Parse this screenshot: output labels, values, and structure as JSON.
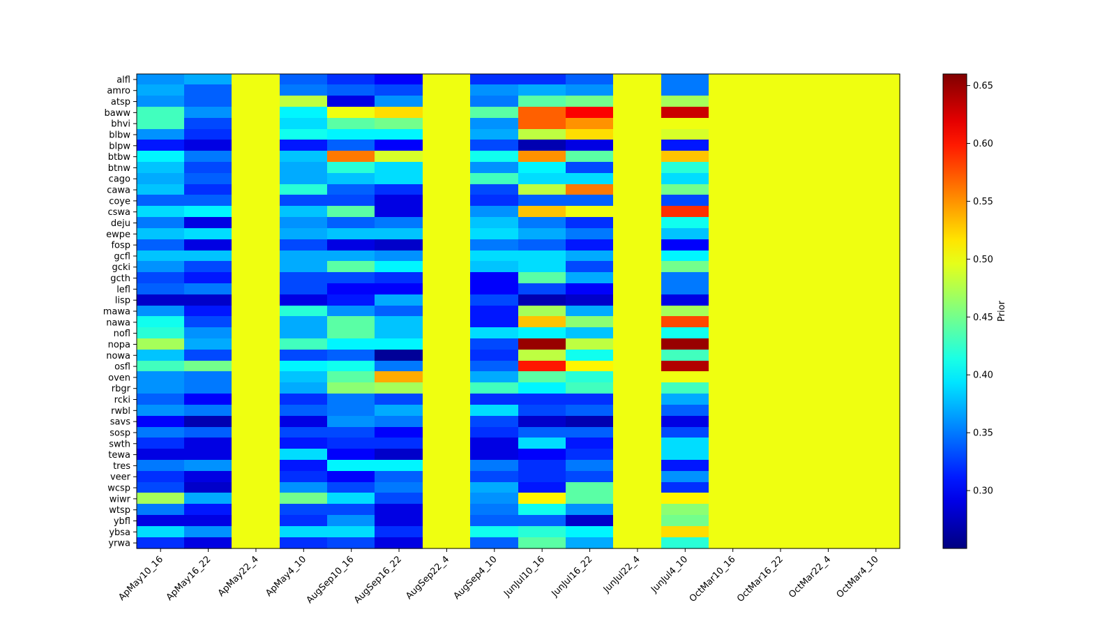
{
  "chart_data": {
    "type": "heatmap",
    "title": "",
    "xlabel": "",
    "ylabel": "",
    "colormap": "jet",
    "colorbar": {
      "label": "Prior",
      "range": [
        0.25,
        0.66
      ],
      "ticks": [
        "0.30",
        "0.35",
        "0.40",
        "0.45",
        "0.50",
        "0.55",
        "0.60",
        "0.65"
      ]
    },
    "x_labels": [
      "ApMay10_16",
      "ApMay16_22",
      "ApMay22_4",
      "ApMay4_10",
      "AugSep10_16",
      "AugSep16_22",
      "AugSep22_4",
      "AugSep4_10",
      "JunJul10_16",
      "JunJul16_22",
      "JunJul22_4",
      "JunJul4_10",
      "OctMar10_16",
      "OctMar16_22",
      "OctMar22_4",
      "OctMar4_10"
    ],
    "y_labels": [
      "alfl",
      "amro",
      "atsp",
      "baww",
      "bhvi",
      "blbw",
      "blpw",
      "btbw",
      "btnw",
      "cago",
      "cawa",
      "coye",
      "cswa",
      "deju",
      "ewpe",
      "fosp",
      "gcfl",
      "gcki",
      "gcth",
      "lefl",
      "lisp",
      "mawa",
      "nawa",
      "nofl",
      "nopa",
      "nowa",
      "osfl",
      "oven",
      "rbgr",
      "rcki",
      "rwbl",
      "savs",
      "sosp",
      "swth",
      "tewa",
      "tres",
      "veer",
      "wcsp",
      "wiwr",
      "wtsp",
      "ybfl",
      "ybsa",
      "yrwa"
    ],
    "values": [
      [
        0.36,
        0.37,
        0.5,
        0.34,
        0.32,
        0.3,
        0.5,
        0.32,
        0.32,
        0.34,
        0.5,
        0.35,
        0.5,
        0.5,
        0.5,
        0.5
      ],
      [
        0.37,
        0.34,
        0.5,
        0.35,
        0.34,
        0.33,
        0.5,
        0.36,
        0.37,
        0.36,
        0.5,
        0.35,
        0.5,
        0.5,
        0.5,
        0.5
      ],
      [
        0.36,
        0.34,
        0.5,
        0.48,
        0.29,
        0.36,
        0.5,
        0.35,
        0.44,
        0.45,
        0.5,
        0.47,
        0.5,
        0.5,
        0.5,
        0.5
      ],
      [
        0.43,
        0.36,
        0.5,
        0.4,
        0.5,
        0.52,
        0.5,
        0.44,
        0.57,
        0.61,
        0.5,
        0.63,
        0.5,
        0.5,
        0.5,
        0.5
      ],
      [
        0.43,
        0.33,
        0.5,
        0.39,
        0.44,
        0.45,
        0.5,
        0.36,
        0.57,
        0.55,
        0.5,
        0.5,
        0.5,
        0.5,
        0.5,
        0.5
      ],
      [
        0.36,
        0.32,
        0.5,
        0.41,
        0.4,
        0.4,
        0.5,
        0.37,
        0.48,
        0.52,
        0.5,
        0.49,
        0.5,
        0.5,
        0.5,
        0.5
      ],
      [
        0.31,
        0.29,
        0.5,
        0.31,
        0.34,
        0.3,
        0.5,
        0.33,
        0.27,
        0.29,
        0.5,
        0.31,
        0.5,
        0.5,
        0.5,
        0.5
      ],
      [
        0.4,
        0.35,
        0.5,
        0.38,
        0.56,
        0.49,
        0.5,
        0.41,
        0.55,
        0.44,
        0.5,
        0.53,
        0.5,
        0.5,
        0.5,
        0.5
      ],
      [
        0.38,
        0.33,
        0.5,
        0.37,
        0.42,
        0.39,
        0.5,
        0.36,
        0.4,
        0.33,
        0.5,
        0.42,
        0.5,
        0.5,
        0.5,
        0.5
      ],
      [
        0.37,
        0.34,
        0.5,
        0.37,
        0.38,
        0.39,
        0.5,
        0.43,
        0.39,
        0.39,
        0.5,
        0.39,
        0.5,
        0.5,
        0.5,
        0.5
      ],
      [
        0.38,
        0.32,
        0.5,
        0.42,
        0.34,
        0.32,
        0.5,
        0.33,
        0.48,
        0.56,
        0.5,
        0.45,
        0.5,
        0.5,
        0.5,
        0.5
      ],
      [
        0.34,
        0.34,
        0.5,
        0.33,
        0.33,
        0.29,
        0.5,
        0.32,
        0.34,
        0.34,
        0.5,
        0.33,
        0.5,
        0.5,
        0.5,
        0.5
      ],
      [
        0.39,
        0.4,
        0.5,
        0.38,
        0.44,
        0.29,
        0.5,
        0.36,
        0.53,
        0.5,
        0.5,
        0.59,
        0.5,
        0.5,
        0.5,
        0.5
      ],
      [
        0.35,
        0.29,
        0.5,
        0.36,
        0.34,
        0.35,
        0.5,
        0.38,
        0.35,
        0.32,
        0.5,
        0.41,
        0.5,
        0.5,
        0.5,
        0.5
      ],
      [
        0.38,
        0.39,
        0.5,
        0.37,
        0.38,
        0.38,
        0.5,
        0.39,
        0.37,
        0.35,
        0.5,
        0.38,
        0.5,
        0.5,
        0.5,
        0.5
      ],
      [
        0.34,
        0.29,
        0.5,
        0.33,
        0.29,
        0.28,
        0.5,
        0.35,
        0.34,
        0.31,
        0.5,
        0.3,
        0.5,
        0.5,
        0.5,
        0.5
      ],
      [
        0.38,
        0.38,
        0.5,
        0.37,
        0.37,
        0.36,
        0.5,
        0.39,
        0.39,
        0.37,
        0.5,
        0.4,
        0.5,
        0.5,
        0.5,
        0.5
      ],
      [
        0.36,
        0.33,
        0.5,
        0.37,
        0.44,
        0.4,
        0.5,
        0.38,
        0.39,
        0.33,
        0.5,
        0.45,
        0.5,
        0.5,
        0.5,
        0.5
      ],
      [
        0.33,
        0.31,
        0.5,
        0.33,
        0.33,
        0.32,
        0.5,
        0.3,
        0.44,
        0.37,
        0.5,
        0.35,
        0.5,
        0.5,
        0.5,
        0.5
      ],
      [
        0.34,
        0.35,
        0.5,
        0.33,
        0.3,
        0.3,
        0.5,
        0.3,
        0.33,
        0.3,
        0.5,
        0.35,
        0.5,
        0.5,
        0.5,
        0.5
      ],
      [
        0.28,
        0.28,
        0.5,
        0.29,
        0.31,
        0.37,
        0.5,
        0.33,
        0.27,
        0.28,
        0.5,
        0.29,
        0.5,
        0.5,
        0.5,
        0.5
      ],
      [
        0.36,
        0.31,
        0.5,
        0.42,
        0.36,
        0.34,
        0.5,
        0.31,
        0.47,
        0.37,
        0.5,
        0.47,
        0.5,
        0.5,
        0.5,
        0.5
      ],
      [
        0.41,
        0.33,
        0.5,
        0.37,
        0.44,
        0.38,
        0.5,
        0.31,
        0.53,
        0.46,
        0.5,
        0.58,
        0.5,
        0.5,
        0.5,
        0.5
      ],
      [
        0.42,
        0.36,
        0.5,
        0.37,
        0.44,
        0.38,
        0.5,
        0.39,
        0.4,
        0.38,
        0.5,
        0.41,
        0.5,
        0.5,
        0.5,
        0.5
      ],
      [
        0.47,
        0.37,
        0.5,
        0.43,
        0.4,
        0.4,
        0.5,
        0.33,
        0.65,
        0.48,
        0.5,
        0.65,
        0.5,
        0.5,
        0.5,
        0.5
      ],
      [
        0.38,
        0.33,
        0.5,
        0.33,
        0.34,
        0.26,
        0.5,
        0.32,
        0.48,
        0.41,
        0.5,
        0.43,
        0.5,
        0.5,
        0.5,
        0.5
      ],
      [
        0.43,
        0.45,
        0.5,
        0.4,
        0.41,
        0.35,
        0.5,
        0.34,
        0.6,
        0.51,
        0.5,
        0.64,
        0.5,
        0.5,
        0.5,
        0.5
      ],
      [
        0.36,
        0.35,
        0.5,
        0.38,
        0.44,
        0.54,
        0.5,
        0.37,
        0.44,
        0.42,
        0.5,
        0.5,
        0.5,
        0.5,
        0.5,
        0.5
      ],
      [
        0.36,
        0.35,
        0.5,
        0.37,
        0.46,
        0.47,
        0.5,
        0.43,
        0.4,
        0.43,
        0.5,
        0.43,
        0.5,
        0.5,
        0.5,
        0.5
      ],
      [
        0.34,
        0.3,
        0.5,
        0.32,
        0.35,
        0.33,
        0.5,
        0.32,
        0.32,
        0.32,
        0.5,
        0.37,
        0.5,
        0.5,
        0.5,
        0.5
      ],
      [
        0.36,
        0.35,
        0.5,
        0.34,
        0.35,
        0.37,
        0.5,
        0.39,
        0.33,
        0.34,
        0.5,
        0.34,
        0.5,
        0.5,
        0.5,
        0.5
      ],
      [
        0.3,
        0.27,
        0.5,
        0.29,
        0.36,
        0.35,
        0.5,
        0.33,
        0.28,
        0.27,
        0.5,
        0.29,
        0.5,
        0.5,
        0.5,
        0.5
      ],
      [
        0.35,
        0.34,
        0.5,
        0.33,
        0.33,
        0.3,
        0.5,
        0.32,
        0.34,
        0.34,
        0.5,
        0.33,
        0.5,
        0.5,
        0.5,
        0.5
      ],
      [
        0.32,
        0.29,
        0.5,
        0.31,
        0.32,
        0.32,
        0.5,
        0.29,
        0.39,
        0.31,
        0.5,
        0.39,
        0.5,
        0.5,
        0.5,
        0.5
      ],
      [
        0.29,
        0.29,
        0.5,
        0.39,
        0.3,
        0.28,
        0.5,
        0.29,
        0.3,
        0.32,
        0.5,
        0.39,
        0.5,
        0.5,
        0.5,
        0.5
      ],
      [
        0.35,
        0.36,
        0.5,
        0.31,
        0.4,
        0.4,
        0.5,
        0.35,
        0.32,
        0.35,
        0.5,
        0.31,
        0.5,
        0.5,
        0.5,
        0.5
      ],
      [
        0.32,
        0.29,
        0.5,
        0.32,
        0.3,
        0.34,
        0.5,
        0.33,
        0.32,
        0.33,
        0.5,
        0.36,
        0.5,
        0.5,
        0.5,
        0.5
      ],
      [
        0.33,
        0.28,
        0.5,
        0.36,
        0.33,
        0.35,
        0.5,
        0.37,
        0.31,
        0.44,
        0.5,
        0.32,
        0.5,
        0.5,
        0.5,
        0.5
      ],
      [
        0.47,
        0.37,
        0.5,
        0.45,
        0.39,
        0.33,
        0.5,
        0.36,
        0.51,
        0.44,
        0.5,
        0.51,
        0.5,
        0.5,
        0.5,
        0.5
      ],
      [
        0.35,
        0.31,
        0.5,
        0.33,
        0.33,
        0.29,
        0.5,
        0.35,
        0.41,
        0.36,
        0.5,
        0.46,
        0.5,
        0.5,
        0.5,
        0.5
      ],
      [
        0.29,
        0.29,
        0.5,
        0.32,
        0.36,
        0.29,
        0.5,
        0.34,
        0.34,
        0.28,
        0.5,
        0.45,
        0.5,
        0.5,
        0.5,
        0.5
      ],
      [
        0.39,
        0.36,
        0.5,
        0.39,
        0.39,
        0.32,
        0.5,
        0.41,
        0.42,
        0.4,
        0.5,
        0.52,
        0.5,
        0.5,
        0.5,
        0.5
      ],
      [
        0.32,
        0.29,
        0.5,
        0.32,
        0.33,
        0.29,
        0.5,
        0.34,
        0.44,
        0.37,
        0.5,
        0.42,
        0.5,
        0.5,
        0.5,
        0.5
      ]
    ]
  }
}
